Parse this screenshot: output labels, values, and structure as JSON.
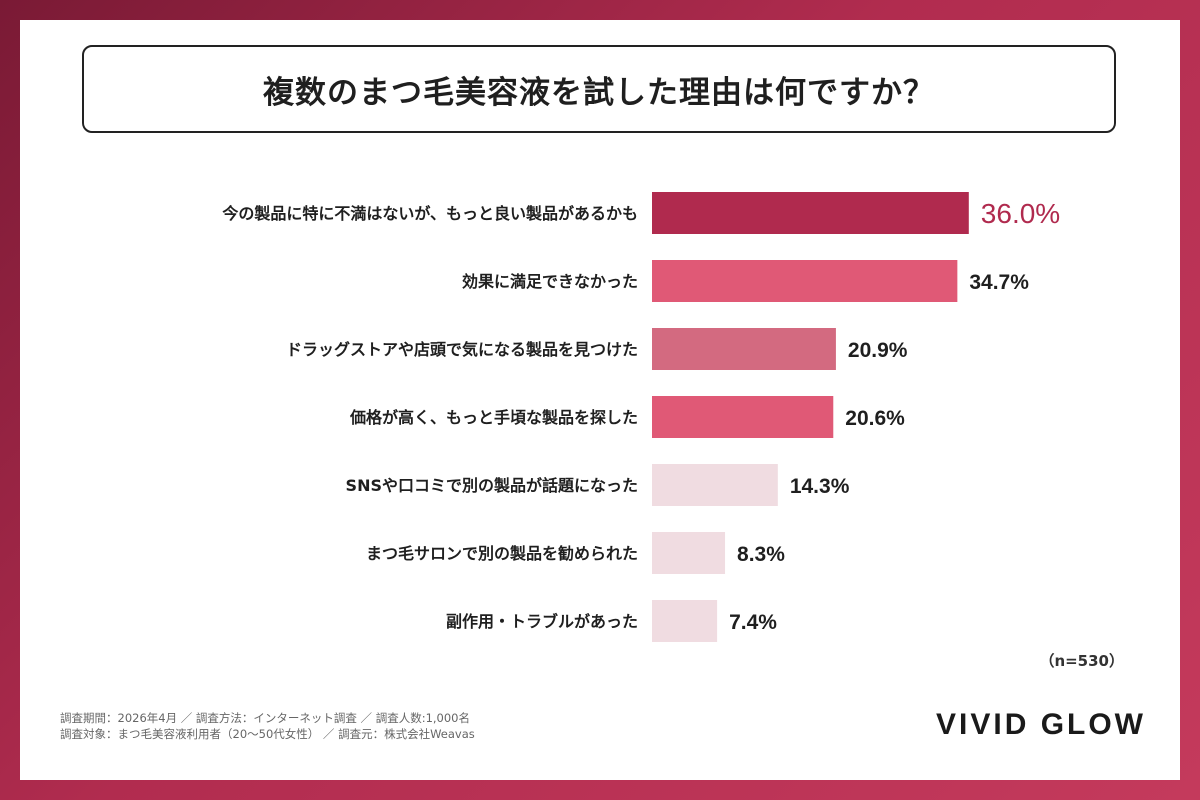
{
  "title": "複数のまつ毛美容液を試した理由は何ですか？",
  "sample_note": "（n=530）",
  "footnote_lines": [
    "調査期間：2026年4月 ／ 調査方法：インターネット調査 ／ 調査人数:1,000名",
    "調査対象：まつ毛美容液利用者（20〜50代女性） ／ 調査元：株式会社Weavas"
  ],
  "brand": "VIVID GLOW",
  "colors": {
    "top": "#b02a4e",
    "high": "#e05976",
    "mid": "#d36a80",
    "low": "#f0dce1",
    "highlight_text": "#b02a4e",
    "text": "#1f1f1f"
  },
  "chart_data": {
    "type": "bar",
    "orientation": "horizontal",
    "title": "複数のまつ毛美容液を試した理由は何ですか？",
    "categories": [
      "今の製品に特に不満はないが、もっと良い製品があるかも",
      "効果に満足できなかった",
      "ドラッグストアや店頭で気になる製品を見つけた",
      "価格が高く、もっと手頃な製品を探した",
      "SNSや口コミで別の製品が話題になった",
      "まつ毛サロンで別の製品を勧められた",
      "副作用・トラブルがあった"
    ],
    "values": [
      36.0,
      34.7,
      20.9,
      20.6,
      14.3,
      8.3,
      7.4
    ],
    "value_labels": [
      "36.0%",
      "34.7%",
      "20.9%",
      "20.6%",
      "14.3%",
      "8.3%",
      "7.4%"
    ],
    "bar_color_keys": [
      "top",
      "high",
      "mid",
      "high",
      "low",
      "low",
      "low"
    ],
    "unit": "%",
    "grid": false,
    "legend": "none"
  }
}
